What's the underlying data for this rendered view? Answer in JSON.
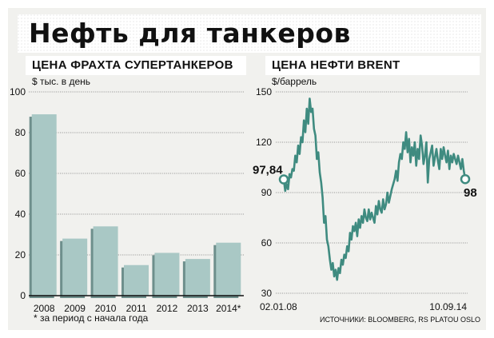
{
  "header": {
    "title": "Нефть для танкеров"
  },
  "footnote": "* за период с начала года",
  "source": "ИСТОЧНИКИ: BLOOMBERG, RS PLATOU OSLO",
  "chart_data": [
    {
      "type": "bar",
      "title": "ЦЕНА ФРАХТА СУПЕРТАНКЕРОВ",
      "unit": "$ тыс. в день",
      "categories": [
        "2008",
        "2009",
        "2010",
        "2011",
        "2012",
        "2013",
        "2014*"
      ],
      "values": [
        89,
        28,
        34,
        15,
        21,
        18,
        26
      ],
      "ylim": [
        0,
        100
      ],
      "yticks": [
        0,
        20,
        40,
        60,
        80,
        100
      ],
      "grid": true,
      "colors": {
        "bar": "#a9c8c5",
        "shadow": "#6e8f8c"
      }
    },
    {
      "type": "line",
      "title": "ЦЕНА НЕФТИ BRENT",
      "unit": "$/баррель",
      "ylim": [
        30,
        150
      ],
      "yticks": [
        30,
        60,
        90,
        120,
        150
      ],
      "x_labels": [
        "02.01.08",
        "10.09.14"
      ],
      "start_label": "97,84",
      "end_label": "98",
      "start_value": 97.84,
      "end_value": 98,
      "series": [
        {
          "values": [
            97.84,
            91,
            95,
            92,
            101,
            99,
            104,
            103,
            112,
            108,
            118,
            113,
            123,
            120,
            133,
            126,
            140,
            131,
            146,
            138,
            140,
            128,
            124,
            110,
            114,
            102,
            96,
            87,
            72,
            76,
            62,
            58,
            50,
            44,
            48,
            40,
            44,
            38,
            45,
            42,
            50,
            47,
            53,
            51,
            58,
            55,
            66,
            62,
            70,
            67,
            72,
            64,
            74,
            69,
            76,
            72,
            80,
            75,
            73,
            80,
            74,
            78,
            75,
            72,
            82,
            77,
            85,
            80,
            78,
            86,
            80,
            83,
            90,
            84,
            88,
            92,
            95,
            98,
            103,
            97,
            108,
            113,
            110,
            120,
            116,
            126,
            114,
            122,
            108,
            117,
            112,
            120,
            106,
            116,
            110,
            124,
            118,
            107,
            112,
            120,
            96,
            110,
            114,
            118,
            106,
            111,
            116,
            109,
            104,
            116,
            110,
            117,
            112,
            108,
            115,
            104,
            112,
            108,
            113,
            110,
            107,
            112,
            108,
            104,
            110,
            103,
            98
          ]
        }
      ],
      "grid": true,
      "colors": {
        "line": "#3f8b80",
        "marker_fill": "#ffffff"
      }
    }
  ]
}
